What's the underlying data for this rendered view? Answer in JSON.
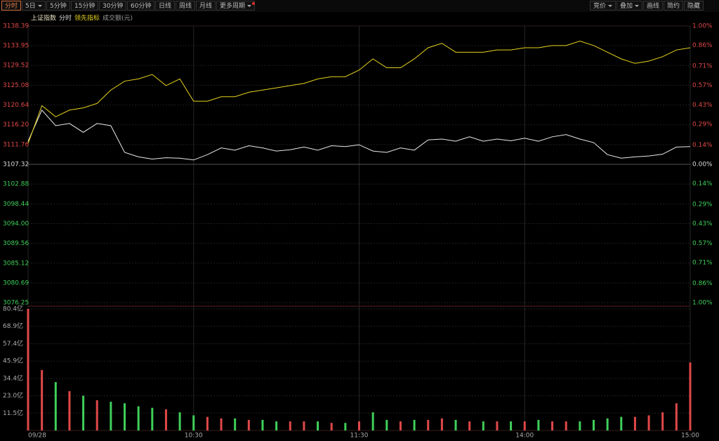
{
  "toolbar": {
    "left": [
      "分时",
      "5日",
      "5分钟",
      "15分钟",
      "30分钟",
      "60分钟",
      "日线",
      "周线",
      "月线",
      "更多周期"
    ],
    "right": [
      "竞价",
      "叠加",
      "画线",
      "简约",
      "隐藏"
    ]
  },
  "chart_data": [
    {
      "type": "line",
      "title": "上证指数",
      "x": [
        0,
        5,
        10,
        15,
        20,
        25,
        30,
        35,
        40,
        45,
        50,
        55,
        60,
        65,
        70,
        75,
        80,
        85,
        90,
        95,
        100,
        105,
        110,
        115,
        120,
        125,
        130,
        135,
        140,
        145,
        150,
        155,
        160,
        165,
        170,
        175,
        180,
        185,
        190,
        195,
        200,
        205,
        210,
        215,
        220,
        225,
        230,
        235,
        240
      ],
      "xlim": [
        0,
        240
      ],
      "xticks": [
        {
          "value": 0,
          "label": "09/28"
        },
        {
          "value": 60,
          "label": "10:30"
        },
        {
          "value": 120,
          "label": "11:30"
        },
        {
          "value": 180,
          "label": "14:00"
        },
        {
          "value": 240,
          "label": "15:00"
        }
      ],
      "series": [
        {
          "name": "分时",
          "color": "#e8e8e8",
          "values": [
            3112.5,
            3119.5,
            3116,
            3116.5,
            3114.5,
            3116.5,
            3116,
            3110,
            3109,
            3108.5,
            3108.8,
            3108.7,
            3108.3,
            3109.5,
            3111,
            3110.5,
            3111.5,
            3111,
            3110.3,
            3110.6,
            3111.2,
            3110.5,
            3111.5,
            3111.3,
            3111.7,
            3110.3,
            3110,
            3111,
            3110.5,
            3112.8,
            3113,
            3112.5,
            3113.5,
            3112.5,
            3113,
            3112.6,
            3113.2,
            3112.5,
            3113.5,
            3114,
            3113,
            3112.2,
            3109.5,
            3108.7,
            3109,
            3109.2,
            3109.6,
            3111.2,
            3111.3
          ]
        },
        {
          "name": "领先指标",
          "color": "#e6d21e",
          "values": [
            3112,
            3120.5,
            3118,
            3119.5,
            3120,
            3121,
            3124,
            3126,
            3126.5,
            3127.5,
            3125,
            3126.5,
            3121.5,
            3121.5,
            3122.5,
            3122.5,
            3123.5,
            3124,
            3124.5,
            3125,
            3125.5,
            3126.5,
            3127,
            3127,
            3128.5,
            3131,
            3129,
            3129,
            3131,
            3133.5,
            3134.5,
            3132.5,
            3132.5,
            3132.5,
            3133,
            3133,
            3133.5,
            3133.5,
            3134,
            3134,
            3135,
            3134,
            3132.5,
            3131,
            3130,
            3130.5,
            3131.5,
            3133,
            3133.5
          ]
        }
      ],
      "ylim": [
        3076.25,
        3138.39
      ],
      "yticks": [
        3138.39,
        3133.95,
        3129.52,
        3125.08,
        3120.64,
        {
          "value": 3116.2,
          "label": "3116.20"
        },
        3111.76,
        3107.32,
        3102.88,
        3098.44,
        {
          "value": 3094,
          "label": "3094.00"
        },
        3089.56,
        3085.12,
        3080.69,
        3076.25
      ],
      "baseline": 3107.32,
      "y2lim": [
        -1,
        1
      ],
      "y2ticks": [
        {
          "value": 1,
          "label": "1.00%"
        },
        {
          "value": 0.86,
          "label": "0.86%"
        },
        {
          "value": 0.71,
          "label": "0.71%"
        },
        {
          "value": 0.57,
          "label": "0.57%"
        },
        {
          "value": 0.43,
          "label": "0.43%"
        },
        {
          "value": 0.29,
          "label": "0.29%"
        },
        {
          "value": 0.14,
          "label": "0.14%"
        },
        {
          "value": 0,
          "label": "0.00%"
        },
        {
          "value": -0.14,
          "label": "0.14%"
        },
        {
          "value": -0.29,
          "label": "0.29%"
        },
        {
          "value": -0.43,
          "label": "0.43%"
        },
        {
          "value": -0.57,
          "label": "0.57%"
        },
        {
          "value": -0.71,
          "label": "0.71%"
        },
        {
          "value": -0.86,
          "label": "0.86%"
        },
        {
          "value": -1,
          "label": "1.00%"
        }
      ],
      "grid": true
    },
    {
      "type": "bar",
      "title": "成交额(元)",
      "values": [
        80.4,
        40,
        32,
        26,
        23,
        20,
        19,
        18,
        16,
        15,
        14,
        12,
        10,
        9,
        8,
        8,
        7,
        7,
        6,
        6,
        6,
        6,
        5,
        5,
        6,
        12,
        7,
        6,
        7,
        7,
        8,
        7,
        6,
        6,
        6,
        6,
        6,
        7,
        6,
        6,
        6,
        7,
        8,
        9,
        9,
        10,
        12,
        18,
        45
      ],
      "up_color": "#e04848",
      "down_color": "#3fcf5a",
      "ylim": [
        0,
        80.4
      ],
      "yticks": [
        {
          "value": 80.4,
          "label": "80.4亿"
        },
        {
          "value": 68.9,
          "label": "68.9亿"
        },
        {
          "value": 57.4,
          "label": "57.4亿"
        },
        {
          "value": 45.9,
          "label": "45.9亿"
        },
        {
          "value": 34.4,
          "label": "34.4亿"
        },
        {
          "value": 23,
          "label": "23.0亿"
        },
        {
          "value": 11.5,
          "label": "11.5亿"
        }
      ],
      "grid": true
    }
  ]
}
